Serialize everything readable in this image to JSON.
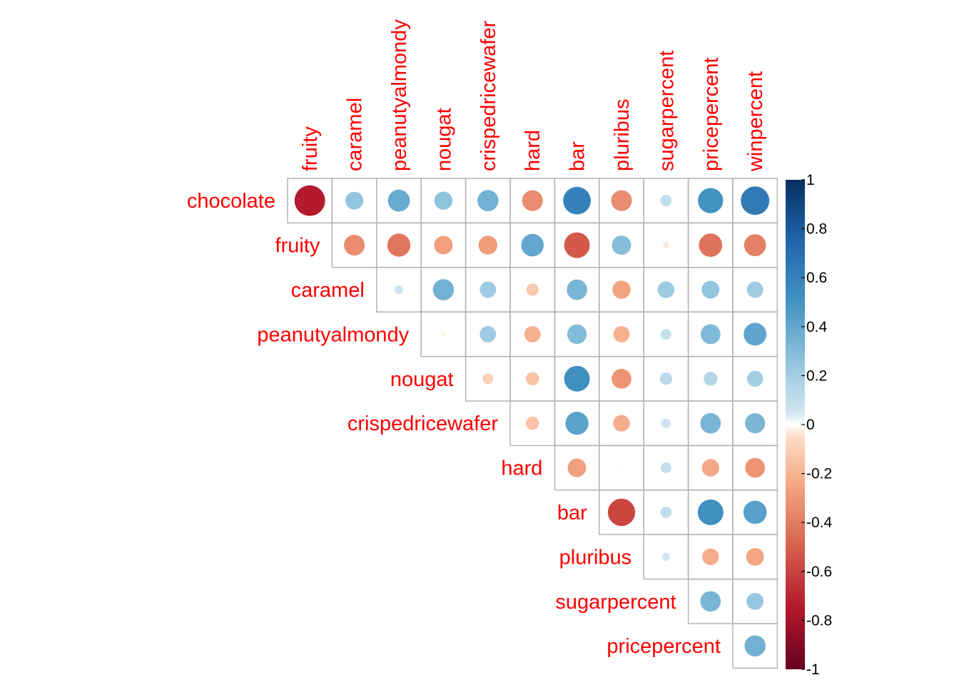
{
  "chart_data": {
    "type": "heatmap",
    "subtype": "correlation-circle-upper",
    "rows": [
      "chocolate",
      "fruity",
      "caramel",
      "peanutyalmondy",
      "nougat",
      "crispedricewafer",
      "hard",
      "bar",
      "pluribus",
      "sugarpercent",
      "pricepercent"
    ],
    "columns": [
      "fruity",
      "caramel",
      "peanutyalmondy",
      "nougat",
      "crispedricewafer",
      "hard",
      "bar",
      "pluribus",
      "sugarpercent",
      "pricepercent",
      "winpercent"
    ],
    "values": [
      [
        -0.74,
        0.25,
        0.38,
        0.26,
        0.35,
        -0.34,
        0.6,
        -0.34,
        0.1,
        0.5,
        0.64
      ],
      [
        -0.34,
        -0.42,
        -0.27,
        -0.28,
        0.4,
        -0.52,
        0.29,
        -0.03,
        -0.43,
        -0.38
      ],
      [
        0.06,
        0.35,
        0.21,
        -0.12,
        0.33,
        -0.26,
        0.22,
        0.25,
        0.21
      ],
      [
        -0.02,
        0.21,
        -0.21,
        0.3,
        -0.21,
        0.09,
        0.31,
        0.41
      ],
      [
        -0.09,
        -0.14,
        0.52,
        -0.31,
        0.12,
        0.15,
        0.2
      ],
      [
        -0.14,
        0.42,
        -0.22,
        0.07,
        0.33,
        0.32
      ],
      [
        -0.27,
        0.01,
        0.09,
        -0.24,
        -0.31
      ],
      [
        -0.59,
        0.1,
        0.52,
        0.43
      ],
      [
        0.05,
        -0.22,
        -0.25
      ],
      [
        0.33,
        0.23
      ],
      [
        0.35
      ]
    ],
    "colorbar": {
      "ticks": [
        "1",
        "0.8",
        "0.6",
        "0.4",
        "0.2",
        "0",
        "-0.2",
        "-0.4",
        "-0.6",
        "-0.8",
        "-1"
      ],
      "range": [
        -1,
        1
      ]
    },
    "colors": {
      "negative_end": "#67001f",
      "positive_end": "#053061",
      "label": "#ff0000",
      "grid": "#b3b3b3"
    }
  }
}
